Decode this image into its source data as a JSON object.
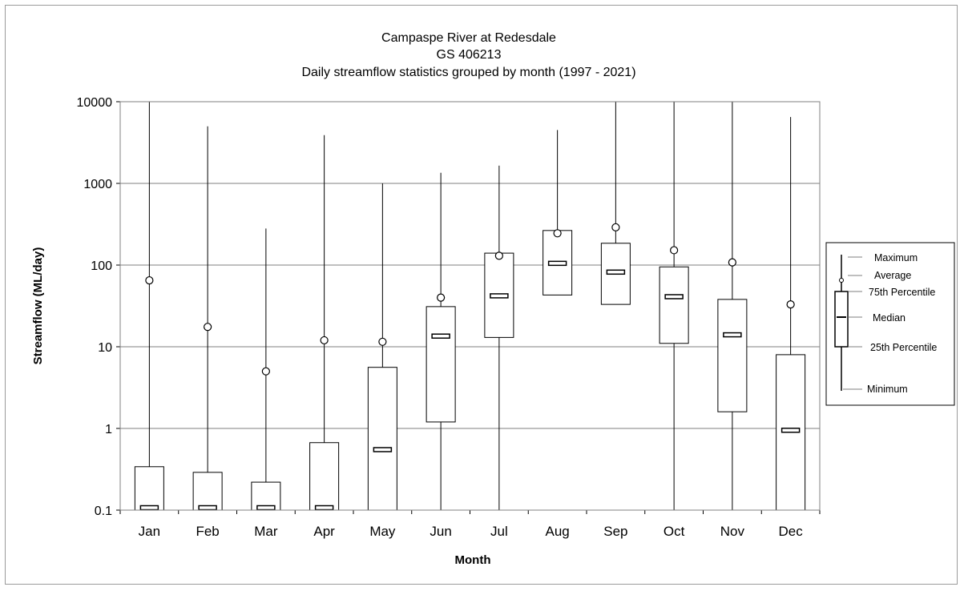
{
  "chart_data": {
    "type": "box",
    "title_lines": [
      "Campaspe River at Redesdale",
      "GS 406213",
      "Daily streamflow statistics grouped by month  (1997 - 2021)"
    ],
    "xlabel": "Month",
    "ylabel": "Streamflow (ML/day)",
    "yscale": "log",
    "ylim": [
      0.1,
      10000
    ],
    "yticks": [
      0.1,
      1,
      10,
      100,
      1000,
      10000
    ],
    "ytick_labels": [
      "0.1",
      "1",
      "10",
      "100",
      "1000",
      "10000"
    ],
    "grid": "horizontal",
    "categories": [
      "Jan",
      "Feb",
      "Mar",
      "Apr",
      "May",
      "Jun",
      "Jul",
      "Aug",
      "Sep",
      "Oct",
      "Nov",
      "Dec"
    ],
    "series": [
      {
        "min": [
          0.1,
          0.1,
          0.1,
          0.1,
          0.1,
          0.1,
          0.1,
          43,
          33,
          0.1,
          0.1,
          0.1
        ],
        "q1": [
          0.1,
          0.1,
          0.1,
          0.1,
          0.1,
          1.2,
          13,
          43,
          33,
          11,
          1.6,
          0.1
        ],
        "median": [
          0.1,
          0.1,
          0.1,
          0.1,
          0.55,
          13.5,
          42,
          105,
          82,
          41,
          14,
          0.95
        ],
        "q3": [
          0.34,
          0.29,
          0.22,
          0.67,
          5.6,
          31,
          140,
          265,
          185,
          95,
          38,
          8
        ],
        "max": [
          10000,
          5000,
          280,
          3900,
          1000,
          1350,
          1650,
          4500,
          10000,
          10000,
          10000,
          6500
        ],
        "mean": [
          65,
          17.5,
          5,
          12,
          11.5,
          40,
          130,
          245,
          290,
          152,
          108,
          33
        ]
      }
    ],
    "legend": {
      "position": "right",
      "entries": [
        "Maximum",
        "Average",
        "75th Percentile",
        "Median",
        "25th Percentile",
        "Minimum"
      ]
    }
  }
}
